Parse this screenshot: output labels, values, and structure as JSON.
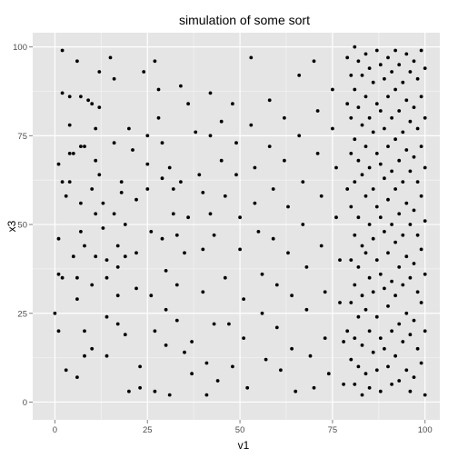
{
  "colors": {
    "panel_background": "#E5E5E5",
    "gridline_major": "#FFFFFF",
    "gridline_minor": "#F2F2F2",
    "point": "#000000",
    "tick_text": "#4D4D4D",
    "page_background": "#FFFFFF"
  },
  "chart_data": {
    "type": "scatter",
    "title": "simulation of some sort",
    "xlabel": "v1",
    "ylabel": "x3",
    "xlim": [
      -6,
      104
    ],
    "ylim": [
      -5,
      104
    ],
    "x_ticks": [
      0,
      25,
      50,
      75,
      100
    ],
    "y_ticks": [
      0,
      25,
      50,
      75,
      100
    ],
    "x_tick_labels": [
      "0",
      "25",
      "50",
      "75",
      "100"
    ],
    "y_tick_labels": [
      "0",
      "25",
      "50",
      "75",
      "100"
    ],
    "grid": true,
    "legend": "none",
    "series": [
      {
        "points": [
          [
            0,
            25
          ],
          [
            1,
            20
          ],
          [
            1,
            46
          ],
          [
            2,
            99
          ],
          [
            2,
            87
          ],
          [
            1,
            67
          ],
          [
            2,
            62
          ],
          [
            3,
            58
          ],
          [
            1,
            36
          ],
          [
            2,
            35
          ],
          [
            3,
            9
          ],
          [
            4,
            86
          ],
          [
            4,
            78
          ],
          [
            4,
            70
          ],
          [
            4,
            62
          ],
          [
            5,
            70
          ],
          [
            5,
            41
          ],
          [
            6,
            35
          ],
          [
            6,
            29
          ],
          [
            6,
            7
          ],
          [
            6,
            96
          ],
          [
            7,
            86
          ],
          [
            7,
            72
          ],
          [
            8,
            72
          ],
          [
            7,
            56
          ],
          [
            7,
            48
          ],
          [
            8,
            44
          ],
          [
            8,
            20
          ],
          [
            8,
            13
          ],
          [
            9,
            85
          ],
          [
            10,
            84
          ],
          [
            11,
            77
          ],
          [
            11,
            68
          ],
          [
            10,
            60
          ],
          [
            11,
            53
          ],
          [
            11,
            41
          ],
          [
            10,
            33
          ],
          [
            10,
            15
          ],
          [
            12,
            93
          ],
          [
            12,
            83
          ],
          [
            12,
            64
          ],
          [
            13,
            56
          ],
          [
            13,
            49
          ],
          [
            14,
            40
          ],
          [
            14,
            35
          ],
          [
            14,
            24
          ],
          [
            14,
            13
          ],
          [
            15,
            97
          ],
          [
            16,
            91
          ],
          [
            16,
            73
          ],
          [
            16,
            53
          ],
          [
            17,
            44
          ],
          [
            17,
            38
          ],
          [
            17,
            30
          ],
          [
            17,
            22
          ],
          [
            18,
            62
          ],
          [
            18,
            59
          ],
          [
            19,
            50
          ],
          [
            19,
            41
          ],
          [
            19,
            19
          ],
          [
            20,
            3
          ],
          [
            20,
            77
          ],
          [
            21,
            71
          ],
          [
            22,
            57
          ],
          [
            22,
            42
          ],
          [
            22,
            32
          ],
          [
            23,
            10
          ],
          [
            23,
            4
          ],
          [
            24,
            93
          ],
          [
            25,
            75
          ],
          [
            25,
            67
          ],
          [
            25,
            60
          ],
          [
            26,
            48
          ],
          [
            26,
            30
          ],
          [
            27,
            20
          ],
          [
            27,
            3
          ],
          [
            27,
            96
          ],
          [
            28,
            88
          ],
          [
            28,
            80
          ],
          [
            29,
            73
          ],
          [
            29,
            63
          ],
          [
            29,
            46
          ],
          [
            30,
            37
          ],
          [
            30,
            26
          ],
          [
            30,
            16
          ],
          [
            31,
            2
          ],
          [
            31,
            66
          ],
          [
            32,
            60
          ],
          [
            32,
            53
          ],
          [
            33,
            47
          ],
          [
            33,
            33
          ],
          [
            33,
            23
          ],
          [
            34,
            89
          ],
          [
            34,
            62
          ],
          [
            35,
            42
          ],
          [
            35,
            14
          ],
          [
            36,
            84
          ],
          [
            36,
            52
          ],
          [
            37,
            17
          ],
          [
            37,
            8
          ],
          [
            38,
            76
          ],
          [
            39,
            64
          ],
          [
            40,
            59
          ],
          [
            40,
            43
          ],
          [
            40,
            31
          ],
          [
            41,
            11
          ],
          [
            41,
            2
          ],
          [
            42,
            87
          ],
          [
            42,
            75
          ],
          [
            42,
            53
          ],
          [
            43,
            47
          ],
          [
            43,
            22
          ],
          [
            44,
            6
          ],
          [
            45,
            79
          ],
          [
            45,
            68
          ],
          [
            46,
            58
          ],
          [
            46,
            35
          ],
          [
            47,
            22
          ],
          [
            48,
            10
          ],
          [
            48,
            84
          ],
          [
            49,
            73
          ],
          [
            49,
            64
          ],
          [
            50,
            52
          ],
          [
            50,
            43
          ],
          [
            51,
            29
          ],
          [
            51,
            18
          ],
          [
            52,
            4
          ],
          [
            53,
            97
          ],
          [
            53,
            78
          ],
          [
            54,
            66
          ],
          [
            54,
            56
          ],
          [
            55,
            48
          ],
          [
            56,
            36
          ],
          [
            56,
            25
          ],
          [
            57,
            12
          ],
          [
            58,
            85
          ],
          [
            58,
            72
          ],
          [
            59,
            60
          ],
          [
            59,
            46
          ],
          [
            60,
            33
          ],
          [
            60,
            21
          ],
          [
            61,
            9
          ],
          [
            62,
            80
          ],
          [
            62,
            68
          ],
          [
            63,
            55
          ],
          [
            63,
            42
          ],
          [
            64,
            30
          ],
          [
            64,
            15
          ],
          [
            65,
            3
          ],
          [
            66,
            92
          ],
          [
            66,
            75
          ],
          [
            67,
            62
          ],
          [
            67,
            50
          ],
          [
            68,
            38
          ],
          [
            68,
            26
          ],
          [
            69,
            13
          ],
          [
            70,
            4
          ],
          [
            70,
            96
          ],
          [
            71,
            82
          ],
          [
            71,
            70
          ],
          [
            72,
            58
          ],
          [
            72,
            44
          ],
          [
            73,
            31
          ],
          [
            73,
            18
          ],
          [
            74,
            8
          ],
          [
            75,
            88
          ],
          [
            75,
            77
          ],
          [
            76,
            66
          ],
          [
            76,
            52
          ],
          [
            77,
            40
          ],
          [
            77,
            28
          ],
          [
            78,
            17
          ],
          [
            78,
            5
          ],
          [
            79,
            97
          ],
          [
            79,
            84
          ],
          [
            79,
            60
          ],
          [
            79,
            20
          ],
          [
            80,
            92
          ],
          [
            80,
            80
          ],
          [
            80,
            70
          ],
          [
            80,
            55
          ],
          [
            80,
            40
          ],
          [
            80,
            28
          ],
          [
            80,
            12
          ],
          [
            81,
            100
          ],
          [
            81,
            88
          ],
          [
            81,
            74
          ],
          [
            81,
            62
          ],
          [
            81,
            47
          ],
          [
            81,
            33
          ],
          [
            81,
            18
          ],
          [
            81,
            5
          ],
          [
            82,
            96
          ],
          [
            82,
            83
          ],
          [
            82,
            68
          ],
          [
            82,
            52
          ],
          [
            82,
            38
          ],
          [
            82,
            24
          ],
          [
            82,
            10
          ],
          [
            83,
            92
          ],
          [
            83,
            78
          ],
          [
            83,
            64
          ],
          [
            83,
            44
          ],
          [
            83,
            30
          ],
          [
            83,
            16
          ],
          [
            83,
            2
          ],
          [
            84,
            98
          ],
          [
            84,
            86
          ],
          [
            84,
            72
          ],
          [
            84,
            58
          ],
          [
            84,
            42
          ],
          [
            84,
            26
          ],
          [
            84,
            8
          ],
          [
            85,
            94
          ],
          [
            85,
            80
          ],
          [
            85,
            66
          ],
          [
            85,
            50
          ],
          [
            85,
            35
          ],
          [
            85,
            20
          ],
          [
            85,
            4
          ],
          [
            86,
            90
          ],
          [
            86,
            76
          ],
          [
            86,
            60
          ],
          [
            86,
            46
          ],
          [
            86,
            31
          ],
          [
            86,
            14
          ],
          [
            87,
            99
          ],
          [
            87,
            84
          ],
          [
            87,
            70
          ],
          [
            87,
            55
          ],
          [
            87,
            40
          ],
          [
            87,
            24
          ],
          [
            87,
            9
          ],
          [
            88,
            95
          ],
          [
            88,
            82
          ],
          [
            88,
            67
          ],
          [
            88,
            52
          ],
          [
            88,
            36
          ],
          [
            88,
            18
          ],
          [
            88,
            3
          ],
          [
            89,
            91
          ],
          [
            89,
            77
          ],
          [
            89,
            63
          ],
          [
            89,
            48
          ],
          [
            89,
            32
          ],
          [
            89,
            15
          ],
          [
            90,
            97
          ],
          [
            90,
            86
          ],
          [
            90,
            72
          ],
          [
            90,
            57
          ],
          [
            90,
            42
          ],
          [
            90,
            27
          ],
          [
            90,
            10
          ],
          [
            91,
            93
          ],
          [
            91,
            80
          ],
          [
            91,
            65
          ],
          [
            91,
            50
          ],
          [
            91,
            34
          ],
          [
            91,
            20
          ],
          [
            91,
            5
          ],
          [
            92,
            99
          ],
          [
            92,
            88
          ],
          [
            92,
            74
          ],
          [
            92,
            60
          ],
          [
            92,
            45
          ],
          [
            92,
            30
          ],
          [
            92,
            13
          ],
          [
            93,
            95
          ],
          [
            93,
            82
          ],
          [
            93,
            68
          ],
          [
            93,
            53
          ],
          [
            93,
            38
          ],
          [
            93,
            22
          ],
          [
            93,
            6
          ],
          [
            94,
            90
          ],
          [
            94,
            76
          ],
          [
            94,
            62
          ],
          [
            94,
            47
          ],
          [
            94,
            33
          ],
          [
            94,
            17
          ],
          [
            95,
            98
          ],
          [
            95,
            85
          ],
          [
            95,
            71
          ],
          [
            95,
            56
          ],
          [
            95,
            41
          ],
          [
            95,
            25
          ],
          [
            95,
            9
          ],
          [
            96,
            93
          ],
          [
            96,
            79
          ],
          [
            96,
            65
          ],
          [
            96,
            50
          ],
          [
            96,
            35
          ],
          [
            96,
            19
          ],
          [
            96,
            3
          ],
          [
            97,
            96
          ],
          [
            97,
            83
          ],
          [
            97,
            69
          ],
          [
            97,
            54
          ],
          [
            97,
            39
          ],
          [
            97,
            23
          ],
          [
            97,
            7
          ],
          [
            98,
            91
          ],
          [
            98,
            77
          ],
          [
            98,
            62
          ],
          [
            98,
            47
          ],
          [
            98,
            31
          ],
          [
            98,
            15
          ],
          [
            99,
            99
          ],
          [
            99,
            86
          ],
          [
            99,
            72
          ],
          [
            99,
            58
          ],
          [
            99,
            43
          ],
          [
            99,
            28
          ],
          [
            99,
            11
          ],
          [
            100,
            94
          ],
          [
            100,
            80
          ],
          [
            100,
            66
          ],
          [
            100,
            51
          ],
          [
            100,
            36
          ],
          [
            100,
            20
          ],
          [
            100,
            2
          ]
        ]
      }
    ]
  }
}
